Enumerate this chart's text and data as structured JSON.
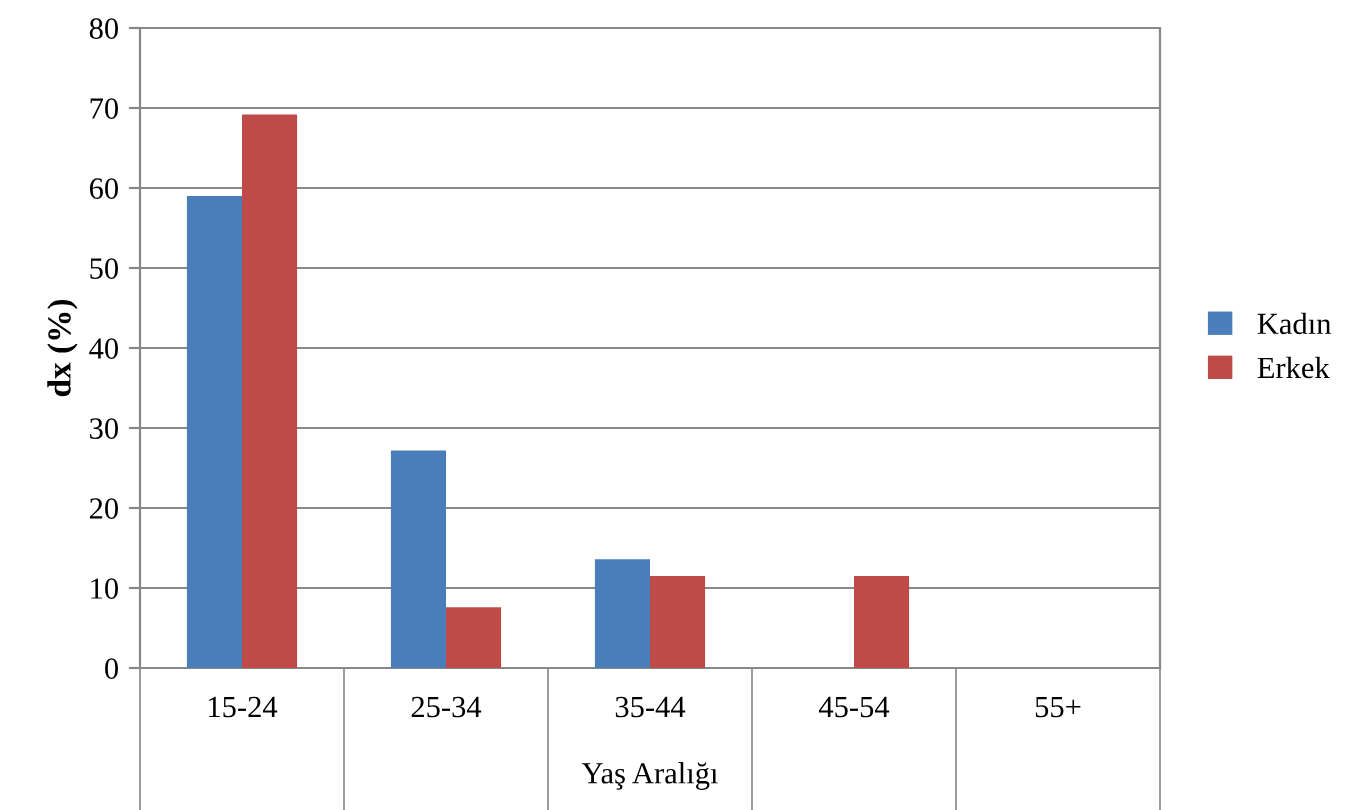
{
  "chart_data": {
    "type": "bar",
    "ylabel": "dx (%)",
    "xlabel": "Yaş Aralığı",
    "categories": [
      "15-24",
      "25-34",
      "35-44",
      "45-54",
      "55+"
    ],
    "series": [
      {
        "name": "Kadın",
        "color": "#4a7ebb",
        "values": [
          59,
          27.2,
          13.6,
          0,
          0
        ]
      },
      {
        "name": "Erkek",
        "color": "#be4b48",
        "values": [
          69.2,
          7.6,
          11.5,
          11.5,
          0
        ]
      }
    ],
    "ylim": [
      0,
      80
    ],
    "yticks": [
      0,
      10,
      20,
      30,
      40,
      50,
      60,
      70,
      80
    ],
    "grid": "y",
    "legend": "right"
  }
}
